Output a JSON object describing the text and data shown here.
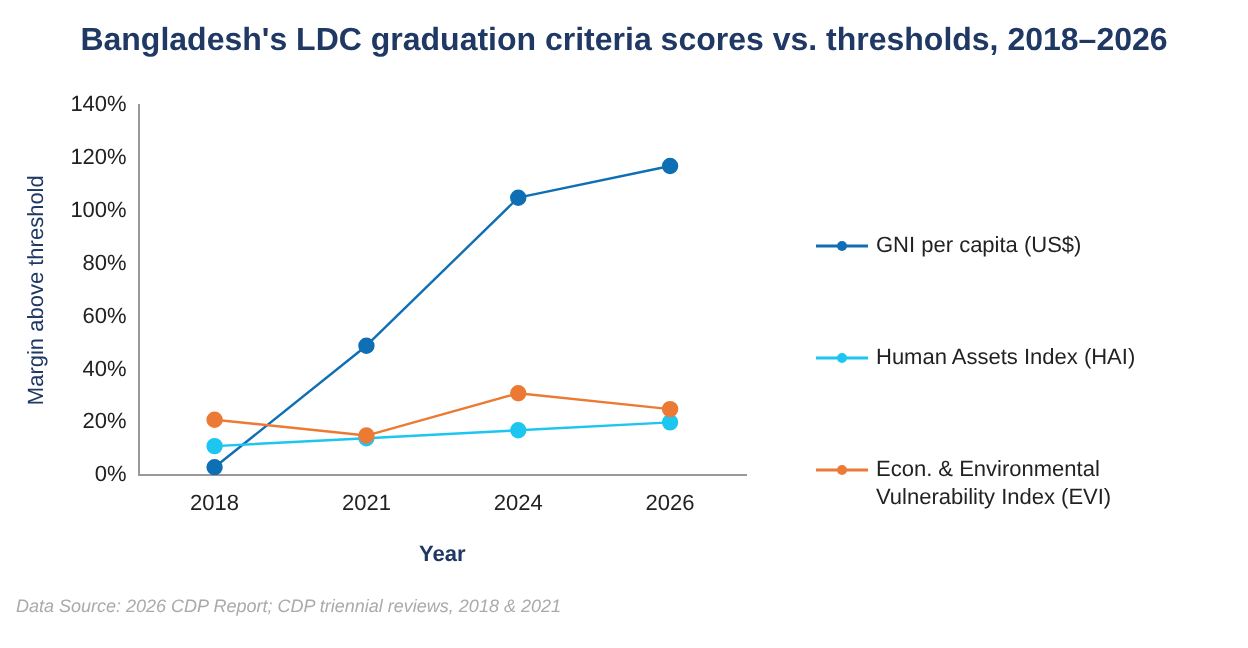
{
  "chart_data": {
    "type": "line",
    "title": "Bangladesh's LDC graduation criteria scores vs. thresholds, 2018–2026",
    "xlabel": "Year",
    "ylabel": "Margin above threshold",
    "categories": [
      "2018",
      "2021",
      "2024",
      "2026"
    ],
    "series": [
      {
        "name": "GNI per capita (US$)",
        "color": "#0f6fb5",
        "values": [
          3,
          49,
          105,
          117
        ]
      },
      {
        "name": "Human Assets Index (HAI)",
        "color": "#1cc6f0",
        "values": [
          11,
          14,
          17,
          20
        ]
      },
      {
        "name": "Econ. & Environmental Vulnerability Index (EVI)",
        "color": "#ec7a35",
        "values": [
          21,
          15,
          31,
          25
        ]
      }
    ],
    "ylim": [
      0,
      140
    ],
    "yticks": [
      {
        "value": 0,
        "label": "0%"
      },
      {
        "value": 20,
        "label": "20%"
      },
      {
        "value": 40,
        "label": "40%"
      },
      {
        "value": 60,
        "label": "60%"
      },
      {
        "value": 80,
        "label": "80%"
      },
      {
        "value": 100,
        "label": "100%"
      },
      {
        "value": 120,
        "label": "120%"
      },
      {
        "value": 140,
        "label": "140%"
      }
    ],
    "grid": false,
    "legend": "right",
    "marker": "circle",
    "line_style": "solid",
    "annotations": [
      "Data Source: 2026 CDP Report; CDP triennial reviews, 2018 & 2021"
    ]
  }
}
